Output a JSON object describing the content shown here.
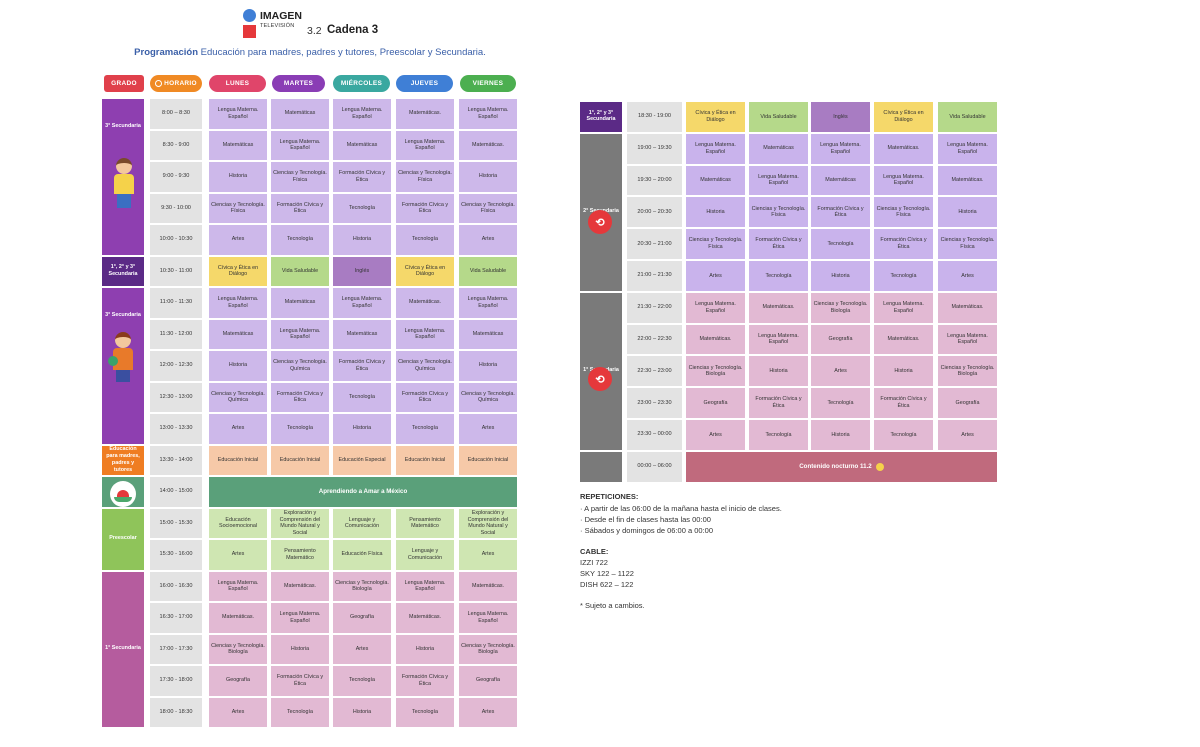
{
  "header": {
    "logo_title": "IMAGEN",
    "logo_subtitle": "TELEVISIÓN",
    "channel_number": "3.2",
    "channel_name": "Cadena 3",
    "program_prefix": "Programación",
    "program_text": " Educación para madres, padres y tutores, Preescolar y Secundaria."
  },
  "columns": {
    "grado": "GRADO",
    "horario": "HORARIO",
    "days": [
      "LUNES",
      "MARTES",
      "MIÉRCOLES",
      "JUEVES",
      "VIERNES"
    ]
  },
  "colors": {
    "grado_pill": "#e0404b",
    "horario_pill": "#f08a24",
    "lunes": "#e0456a",
    "martes": "#8a3db5",
    "miercoles": "#3aa8a0",
    "jueves": "#3f7fd6",
    "viernes": "#4caf50",
    "grade3": "#8e3fb0",
    "grade123": "#5b2a86",
    "grade2": "#7a7a7a",
    "grade1": "#b55c9e",
    "padres": "#ef7d22",
    "amar": "#5aa07a",
    "preescolar": "#8fc45a",
    "rep_cell_3": "#cdb8ea",
    "rep_cell_2": "#c9b3ec",
    "rep_cell_1": "#e2b9d3",
    "civica": "#f5d86a",
    "vida": "#b5d98a",
    "ingles": "#a87cc2",
    "padres_cell": "#f6c9a8",
    "pre_cell": "#cfe6b2",
    "nocturno": "#c06a7d",
    "time_cell": "#e3e3e3"
  },
  "left": {
    "blocks": [
      {
        "grade": "3° Secundaria",
        "rows": [
          {
            "time": "8:00 – 8:30",
            "cells": [
              "Lengua Materna. Español",
              "Matemáticas",
              "Lengua Materna. Español",
              "Matemáticas.",
              "Lengua Materna. Español"
            ]
          },
          {
            "time": "8:30 - 9:00",
            "cells": [
              "Matemáticas",
              "Lengua Materna. Español",
              "Matemáticas",
              "Lengua Materna. Español",
              "Matemáticas."
            ]
          },
          {
            "time": "9:00 - 9:30",
            "cells": [
              "Historia",
              "Ciencias y Tecnología. Física",
              "Formación Cívica y Ética",
              "Ciencias y Tecnología. Física",
              "Historia"
            ]
          },
          {
            "time": "9:30 - 10:00",
            "cells": [
              "Ciencias y Tecnología. Física",
              "Formación Cívica y Ética",
              "Tecnología",
              "Formación Cívica y Ética",
              "Ciencias y Tecnología. Física"
            ]
          },
          {
            "time": "10:00 - 10:30",
            "cells": [
              "Artes",
              "Tecnología",
              "Historia",
              "Tecnología",
              "Artes"
            ]
          }
        ]
      },
      {
        "grade": "1°, 2° y 3° Secundaria",
        "rows": [
          {
            "time": "10:30 - 11:00",
            "cells": [
              "Cívica y Ética en Diálogo",
              "Vida Saludable",
              "Inglés",
              "Cívica y Ética en Diálogo",
              "Vida Saludable"
            ]
          }
        ]
      },
      {
        "grade": "3° Secundaria",
        "rows": [
          {
            "time": "11:00 - 11:30",
            "cells": [
              "Lengua Materna. Español",
              "Matemáticas",
              "Lengua Materna. Español",
              "Matemáticas.",
              "Lengua Materna. Español"
            ]
          },
          {
            "time": "11:30 - 12:00",
            "cells": [
              "Matemáticas",
              "Lengua Materna. Español",
              "Matemáticas",
              "Lengua Materna. Español",
              "Matemáticas"
            ]
          },
          {
            "time": "12:00 - 12:30",
            "cells": [
              "Historia",
              "Ciencias y Tecnología. Química",
              "Formación Cívica y Ética",
              "Ciencias y Tecnología. Química",
              "Historia"
            ]
          },
          {
            "time": "12:30 - 13:00",
            "cells": [
              "Ciencias y Tecnología. Química",
              "Formación Cívica y Ética",
              "Tecnología",
              "Formación Cívica y Ética",
              "Ciencias y Tecnología. Química"
            ]
          },
          {
            "time": "13:00 - 13:30",
            "cells": [
              "Artes",
              "Tecnología",
              "Historia",
              "Tecnología",
              "Artes"
            ]
          }
        ]
      },
      {
        "grade": "Educación para madres, padres y tutores",
        "rows": [
          {
            "time": "13:30 - 14:00",
            "cells": [
              "Educación Inicial",
              "Educación Inicial",
              "Educación Especial",
              "Educación Inicial",
              "Educación Inicial"
            ]
          }
        ]
      },
      {
        "grade": "",
        "rows": [
          {
            "time": "14:00 - 15:00",
            "span": "Aprendiendo a Amar a México"
          }
        ]
      },
      {
        "grade": "Preescolar",
        "rows": [
          {
            "time": "15:00 - 15:30",
            "cells": [
              "Educación Socioemocional",
              "Exploración y Comprensión del Mundo Natural y Social",
              "Lenguaje y Comunicación",
              "Pensamiento Matemático",
              "Exploración y Comprensión del Mundo Natural y Social"
            ]
          },
          {
            "time": "15:30 - 16:00",
            "cells": [
              "Artes",
              "Pensamiento Matemático",
              "Educación Física",
              "Lenguaje y Comunicación",
              "Artes"
            ]
          }
        ]
      },
      {
        "grade": "1° Secundaria",
        "rows": [
          {
            "time": "16:00 - 16:30",
            "cells": [
              "Lengua Materna. Español",
              "Matemáticas.",
              "Ciencias y Tecnología. Biología",
              "Lengua Materna. Español",
              "Matemáticas."
            ]
          },
          {
            "time": "16:30 - 17:00",
            "cells": [
              "Matemáticas.",
              "Lengua Materna. Español",
              "Geografía",
              "Matemáticas.",
              "Lengua Materna. Español"
            ]
          },
          {
            "time": "17:00 - 17:30",
            "cells": [
              "Ciencias y Tecnología. Biología",
              "Historia",
              "Artes",
              "Historia",
              "Ciencias y Tecnología. Biología"
            ]
          },
          {
            "time": "17:30 - 18:00",
            "cells": [
              "Geografía",
              "Formación Cívica y Ética",
              "Tecnología",
              "Formación Cívica y Ética",
              "Geografía"
            ]
          },
          {
            "time": "18:00 - 18:30",
            "cells": [
              "Artes",
              "Tecnología",
              "Historia",
              "Tecnología",
              "Artes"
            ]
          }
        ]
      }
    ]
  },
  "right": {
    "blocks": [
      {
        "grade": "1°, 2° y 3° Secundaria",
        "rows": [
          {
            "time": "18:30 - 19:00",
            "cells": [
              "Cívica y Ética en Diálogo",
              "Vida Saludable",
              "Inglés",
              "Cívica y Ética en Diálogo",
              "Vida Saludable"
            ]
          }
        ]
      },
      {
        "grade": "2° Secundaria",
        "rows": [
          {
            "time": "19:00 – 19:30",
            "cells": [
              "Lengua Materna. Español",
              "Matemáticas",
              "Lengua Materna. Español",
              "Matemáticas.",
              "Lengua Materna. Español"
            ]
          },
          {
            "time": "19:30 – 20:00",
            "cells": [
              "Matemáticas",
              "Lengua Materna. Español",
              "Matemáticas",
              "Lengua Materna. Español",
              "Matemáticas."
            ]
          },
          {
            "time": "20:00 – 20:30",
            "cells": [
              "Historia",
              "Ciencias y Tecnología. Física",
              "Formación Cívica y Ética",
              "Ciencias y Tecnología. Física",
              "Historia"
            ]
          },
          {
            "time": "20:30 – 21:00",
            "cells": [
              "Ciencias y Tecnología. Física",
              "Formación Cívica y Ética",
              "Tecnología",
              "Formación Cívica y Ética",
              "Ciencias y Tecnología. Física"
            ]
          },
          {
            "time": "21:00 – 21:30",
            "cells": [
              "Artes",
              "Tecnología",
              "Historia",
              "Tecnología",
              "Artes"
            ]
          }
        ]
      },
      {
        "grade": "1° Secundaria",
        "rows": [
          {
            "time": "21:30 – 22:00",
            "cells": [
              "Lengua Materna. Español",
              "Matemáticas.",
              "Ciencias y Tecnología. Biología",
              "Lengua Materna. Español",
              "Matemáticas."
            ]
          },
          {
            "time": "22:00 – 22:30",
            "cells": [
              "Matemáticas.",
              "Lengua Materna. Español",
              "Geografía",
              "Matemáticas.",
              "Lengua Materna. Español"
            ]
          },
          {
            "time": "22:30 – 23:00",
            "cells": [
              "Ciencias y Tecnología. Biología",
              "Historia",
              "Artes",
              "Historia",
              "Ciencias y Tecnología. Biología"
            ]
          },
          {
            "time": "23:00 – 23:30",
            "cells": [
              "Geografía",
              "Formación Cívica y Ética",
              "Tecnología",
              "Formación Cívica y Ética",
              "Geografía"
            ]
          },
          {
            "time": "23:30 – 00:00",
            "cells": [
              "Artes",
              "Tecnología",
              "Historia",
              "Tecnología",
              "Artes"
            ]
          }
        ]
      },
      {
        "grade": "",
        "rows": [
          {
            "time": "00:00 – 06:00",
            "span": "Contenido nocturno 11.2"
          }
        ]
      }
    ]
  },
  "notes": {
    "repeticiones_title": "REPETICIONES:",
    "repeticiones": [
      "· A partir de las 06:00 de la mañana hasta el inicio de clases.",
      "· Desde el fin de clases hasta las 00:00",
      "· Sábados y domingos de 06:00 a 00:00"
    ],
    "cable_title": "CABLE:",
    "cable": [
      "IZZI 722",
      "SKY 122 – 1122",
      "DISH 622 – 122"
    ],
    "footnote": "* Sujeto a cambios."
  }
}
